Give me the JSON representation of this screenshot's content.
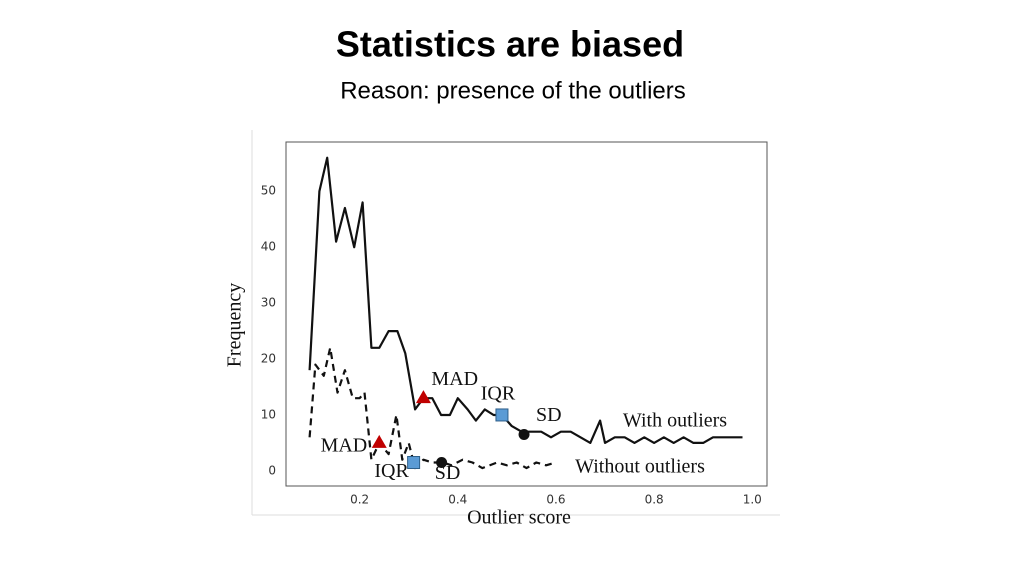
{
  "chart_data": {
    "type": "line",
    "title": "Statistics are biased",
    "subtitle": "Reason: presence of the outliers",
    "x_label": "Outlier score",
    "y_label": "Frequency",
    "xlim": [
      0.05,
      1.03
    ],
    "ylim": [
      -2.7,
      58.8
    ],
    "xticks": [
      0.2,
      0.4,
      0.6,
      0.8,
      {
        "value": 1,
        "label": "1.0"
      }
    ],
    "yticks": [
      0,
      10,
      20,
      30,
      40,
      50
    ],
    "grid": false,
    "series": [
      {
        "name": "With outliers",
        "color": "#111111",
        "dashed": false,
        "x": [
          0.098,
          0.118,
          0.134,
          0.152,
          0.17,
          0.189,
          0.206,
          0.224,
          0.24,
          0.259,
          0.277,
          0.293,
          0.313,
          0.33,
          0.348,
          0.366,
          0.384,
          0.4,
          0.42,
          0.437,
          0.455,
          0.473,
          0.49,
          0.51,
          0.53,
          0.55,
          0.57,
          0.59,
          0.61,
          0.63,
          0.65,
          0.67,
          0.69,
          0.7,
          0.72,
          0.74,
          0.76,
          0.78,
          0.8,
          0.82,
          0.84,
          0.86,
          0.88,
          0.9,
          0.92,
          0.94,
          0.96,
          0.98
        ],
        "values": [
          18,
          50,
          56,
          41,
          47,
          40,
          48,
          22,
          22,
          25,
          25,
          21,
          11,
          13,
          13,
          10,
          10,
          13,
          11,
          9,
          11,
          10,
          10,
          8,
          7,
          7,
          7,
          6,
          7,
          7,
          6,
          5,
          9,
          5,
          6,
          6,
          5,
          6,
          5,
          6,
          5,
          6,
          5,
          5,
          6,
          6,
          6,
          6
        ],
        "markers": [
          {
            "label": "MAD",
            "x": 0.33,
            "y": 13,
            "shape": "triangle",
            "color": "#c00000"
          },
          {
            "label": "IQR",
            "x": 0.49,
            "y": 10,
            "shape": "square",
            "color": "#5b9bd5"
          },
          {
            "label": "SD",
            "x": 0.535,
            "y": 6.5,
            "shape": "circle",
            "color": "#111111"
          }
        ]
      },
      {
        "name": "Without outliers",
        "color": "#111111",
        "dashed": true,
        "x": [
          0.098,
          0.11,
          0.127,
          0.14,
          0.155,
          0.17,
          0.186,
          0.2,
          0.21,
          0.224,
          0.24,
          0.259,
          0.275,
          0.287,
          0.3,
          0.313,
          0.33,
          0.348,
          0.37,
          0.387,
          0.41,
          0.43,
          0.45,
          0.48,
          0.5,
          0.52,
          0.54,
          0.56,
          0.58,
          0.6
        ],
        "values": [
          6,
          19,
          17,
          22,
          14,
          18,
          13,
          13,
          14,
          2,
          5,
          3,
          10,
          2,
          5,
          0.5,
          2,
          1.5,
          1.5,
          1,
          2,
          1.5,
          0.5,
          1.5,
          1,
          1.5,
          0.5,
          1.5,
          1,
          1.5
        ],
        "markers": [
          {
            "label": "MAD",
            "x": 0.24,
            "y": 5,
            "shape": "triangle",
            "color": "#c00000"
          },
          {
            "label": "IQR",
            "x": 0.31,
            "y": 1.5,
            "shape": "square",
            "color": "#5b9bd5"
          },
          {
            "label": "SD",
            "x": 0.367,
            "y": 1.5,
            "shape": "circle",
            "color": "#111111"
          }
        ]
      }
    ]
  }
}
